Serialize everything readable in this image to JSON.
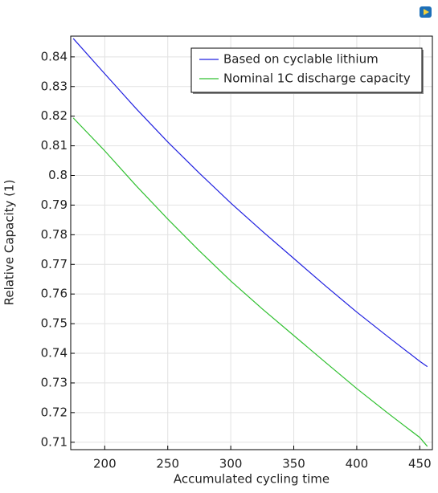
{
  "chart_data": {
    "type": "line",
    "xlabel": "Accumulated cycling time",
    "ylabel": "Relative Capacity (1)",
    "x": [
      175,
      200,
      225,
      250,
      275,
      300,
      325,
      350,
      375,
      400,
      425,
      450,
      456
    ],
    "series": [
      {
        "name": "Based on cyclable lithium",
        "color": "#2020e0",
        "values": [
          0.8462,
          0.8343,
          0.8225,
          0.8113,
          0.8008,
          0.7907,
          0.7812,
          0.772,
          0.7628,
          0.7539,
          0.7455,
          0.7373,
          0.7355
        ]
      },
      {
        "name": "Nominal 1C discharge capacity",
        "color": "#30c030",
        "values": [
          0.8194,
          0.8083,
          0.7965,
          0.7853,
          0.7746,
          0.7644,
          0.755,
          0.746,
          0.737,
          0.7281,
          0.7197,
          0.7116,
          0.7086
        ]
      }
    ],
    "xlim": [
      173,
      460
    ],
    "ylim": [
      0.7075,
      0.847
    ],
    "xticks": [
      200,
      250,
      300,
      350,
      400,
      450
    ],
    "yticks": [
      0.71,
      0.72,
      0.73,
      0.74,
      0.75,
      0.76,
      0.77,
      0.78,
      0.79,
      0.8,
      0.81,
      0.82,
      0.83,
      0.84
    ],
    "grid": true,
    "legend": "upper right"
  }
}
